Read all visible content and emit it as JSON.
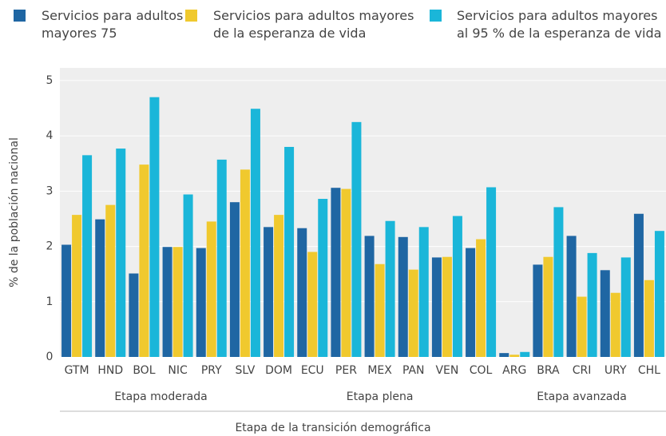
{
  "chart_data": {
    "type": "bar",
    "x_label": "Etapa de la transición demográfica",
    "y_label": "% de la población nacional",
    "categories": [
      "GTM",
      "HND",
      "BOL",
      "NIC",
      "PRY",
      "SLV",
      "DOM",
      "ECU",
      "PER",
      "MEX",
      "PAN",
      "VEN",
      "COL",
      "ARG",
      "BRA",
      "CRI",
      "URY",
      "CHL"
    ],
    "groups": [
      {
        "label": "Etapa moderada",
        "from": "GTM",
        "to": "SLV"
      },
      {
        "label": "Etapa plena",
        "from": "DOM",
        "to": "COL"
      },
      {
        "label": "Etapa avanzada",
        "from": "ARG",
        "to": "CHL"
      }
    ],
    "series": [
      {
        "name": "Servicios para adultos mayores 75",
        "color": "#1f66a3",
        "values": [
          2.03,
          2.49,
          1.51,
          1.99,
          1.97,
          2.8,
          2.35,
          2.33,
          3.06,
          2.19,
          2.17,
          1.8,
          1.97,
          0.07,
          1.67,
          2.19,
          1.57,
          2.59
        ]
      },
      {
        "name": "Servicios para adultos mayores de la esperanza de vida",
        "color": "#f0c92e",
        "values": [
          2.57,
          2.75,
          3.48,
          1.99,
          2.45,
          3.39,
          2.57,
          1.9,
          3.04,
          1.68,
          1.58,
          1.81,
          2.13,
          0.04,
          1.81,
          1.09,
          1.16,
          1.39
        ]
      },
      {
        "name": "Servicios para adultos mayores al 95 % de la esperanza de vida",
        "color": "#1ab6d9",
        "values": [
          3.65,
          3.77,
          4.7,
          2.94,
          3.57,
          4.49,
          3.8,
          2.86,
          4.25,
          2.46,
          2.35,
          2.55,
          3.07,
          0.09,
          2.71,
          1.88,
          1.8,
          2.28
        ]
      }
    ],
    "ylim": [
      0,
      5.23
    ],
    "yticks": [
      0,
      1,
      2,
      3,
      4,
      5
    ],
    "grid": true
  }
}
